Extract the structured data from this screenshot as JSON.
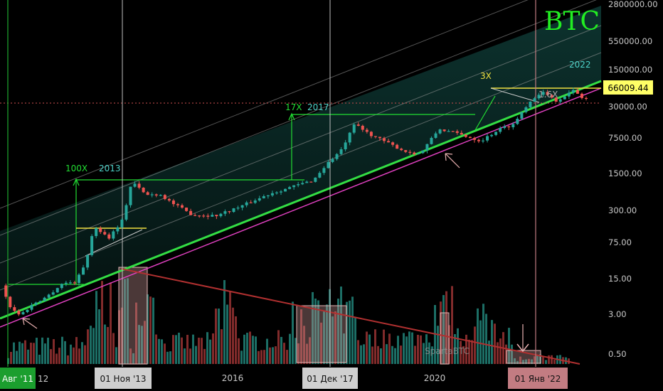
{
  "chart_data": {
    "type": "candlestick",
    "title": "BTC",
    "y_scale": "log",
    "ylim": [
      0.4,
      3000000
    ],
    "xlim": [
      "2011-06-01",
      "2024-06-01"
    ],
    "price_labels": [
      "2800000.00",
      "550000.00",
      "150000.00",
      "30000.00",
      "7500.00",
      "1500.00",
      "300.00",
      "75.00",
      "15.00",
      "3.00",
      "0.50"
    ],
    "current_price": "66009.44",
    "x_ticks": [
      "2016",
      "2020"
    ],
    "x_highlights": [
      {
        "label": "Авг '11",
        "suffix": "12",
        "color": "#1b9e2e"
      },
      {
        "label": "01 Ноя '13",
        "color": "#cfcfcf"
      },
      {
        "label": "01 Дек '17",
        "color": "#cfcfcf"
      },
      {
        "label": "01 Янв '22",
        "color": "#c27c82"
      }
    ],
    "annotations": [
      {
        "text": "100X",
        "color": "#22dd33"
      },
      {
        "text": "2013",
        "color": "#4dd2c8"
      },
      {
        "text": "17X",
        "color": "#22dd33"
      },
      {
        "text": "2017",
        "color": "#4dd2c8"
      },
      {
        "text": "3X",
        "color": "#f0e040"
      },
      {
        "text": "2022",
        "color": "#4dd2c8"
      },
      {
        "text": "1.6X",
        "color": "#aaaaaa"
      }
    ],
    "watermark": "SpartaBTC",
    "colors": {
      "up": "#26a69a",
      "down": "#ef5350",
      "support": "#33dd44",
      "lower_band": "#e040c0",
      "volume_trend": "#b03030",
      "title": "#22ee22",
      "price_tag": "#ffff66"
    },
    "series": [
      {
        "name": "price_path",
        "points": [
          [
            "2011-08-01",
            11
          ],
          [
            "2011-10-01",
            4
          ],
          [
            "2011-12-01",
            3.0
          ],
          [
            "2012-03-01",
            5
          ],
          [
            "2012-06-01",
            7
          ],
          [
            "2012-09-01",
            12
          ],
          [
            "2012-12-01",
            13
          ],
          [
            "2013-02-01",
            30
          ],
          [
            "2013-04-01",
            150
          ],
          [
            "2013-07-01",
            90
          ],
          [
            "2013-10-01",
            200
          ],
          [
            "2013-12-01",
            1100
          ],
          [
            "2014-03-01",
            600
          ],
          [
            "2014-06-01",
            620
          ],
          [
            "2014-09-01",
            400
          ],
          [
            "2015-01-01",
            250
          ],
          [
            "2015-06-01",
            240
          ],
          [
            "2015-11-01",
            350
          ],
          [
            "2016-06-01",
            650
          ],
          [
            "2016-12-01",
            950
          ],
          [
            "2017-03-01",
            1150
          ],
          [
            "2017-06-01",
            2400
          ],
          [
            "2017-09-01",
            4300
          ],
          [
            "2017-12-01",
            14000
          ],
          [
            "2018-02-01",
            10000
          ],
          [
            "2018-06-01",
            6500
          ],
          [
            "2018-11-01",
            4000
          ],
          [
            "2019-02-01",
            3700
          ],
          [
            "2019-06-01",
            11000
          ],
          [
            "2019-10-01",
            9000
          ],
          [
            "2020-03-01",
            6500
          ],
          [
            "2020-07-01",
            11000
          ],
          [
            "2020-10-01",
            13500
          ],
          [
            "2021-01-01",
            33000
          ],
          [
            "2021-04-01",
            58000
          ],
          [
            "2021-07-01",
            38000
          ],
          [
            "2021-11-01",
            60000
          ],
          [
            "2022-01-01",
            42000
          ]
        ]
      }
    ]
  }
}
